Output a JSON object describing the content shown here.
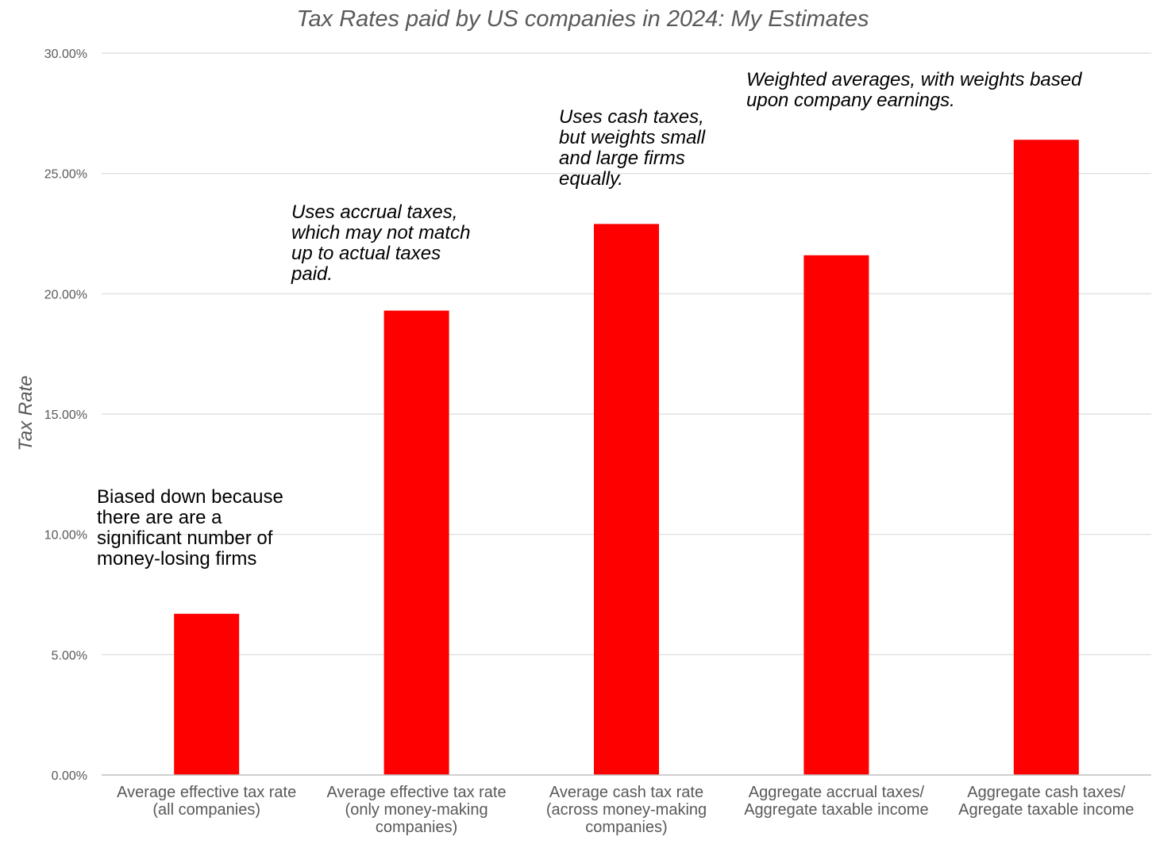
{
  "chart_data": {
    "type": "bar",
    "title": "Tax Rates paid by US companies in 2024: My Estimates",
    "xlabel": "",
    "ylabel": "Tax Rate",
    "ylim": [
      0,
      30
    ],
    "yticks": [
      0,
      5,
      10,
      15,
      20,
      25,
      30
    ],
    "ytick_labels": [
      "0.00%",
      "5.00%",
      "10.00%",
      "15.00%",
      "20.00%",
      "25.00%",
      "30.00%"
    ],
    "grid": true,
    "bar_color": "#ff0000",
    "categories": [
      [
        "Average effective tax rate",
        "(all companies)"
      ],
      [
        "Average effective tax rate",
        "(only money-making",
        "companies)"
      ],
      [
        "Average cash tax rate",
        "(across money-making",
        "companies)"
      ],
      [
        "Aggregate accrual taxes/",
        "Aggregate taxable income"
      ],
      [
        "Aggregate cash taxes/",
        "Agregate taxable income"
      ]
    ],
    "values": [
      6.7,
      19.3,
      22.9,
      21.6,
      26.4
    ],
    "annotations": [
      {
        "lines": [
          "Biased down because",
          "there are are a",
          "significant number of",
          "money-losing firms"
        ],
        "italic": false,
        "near_category": 0
      },
      {
        "lines": [
          "Uses accrual taxes,",
          "which may not match",
          "up to actual taxes",
          "paid."
        ],
        "italic": true,
        "near_category": 1
      },
      {
        "lines": [
          "Uses cash taxes,",
          "but weights small",
          "and large firms",
          "equally."
        ],
        "italic": true,
        "near_category": 2
      },
      {
        "lines": [
          "Weighted averages, with weights based",
          "upon company earnings."
        ],
        "italic": true,
        "near_category": 3
      }
    ]
  }
}
